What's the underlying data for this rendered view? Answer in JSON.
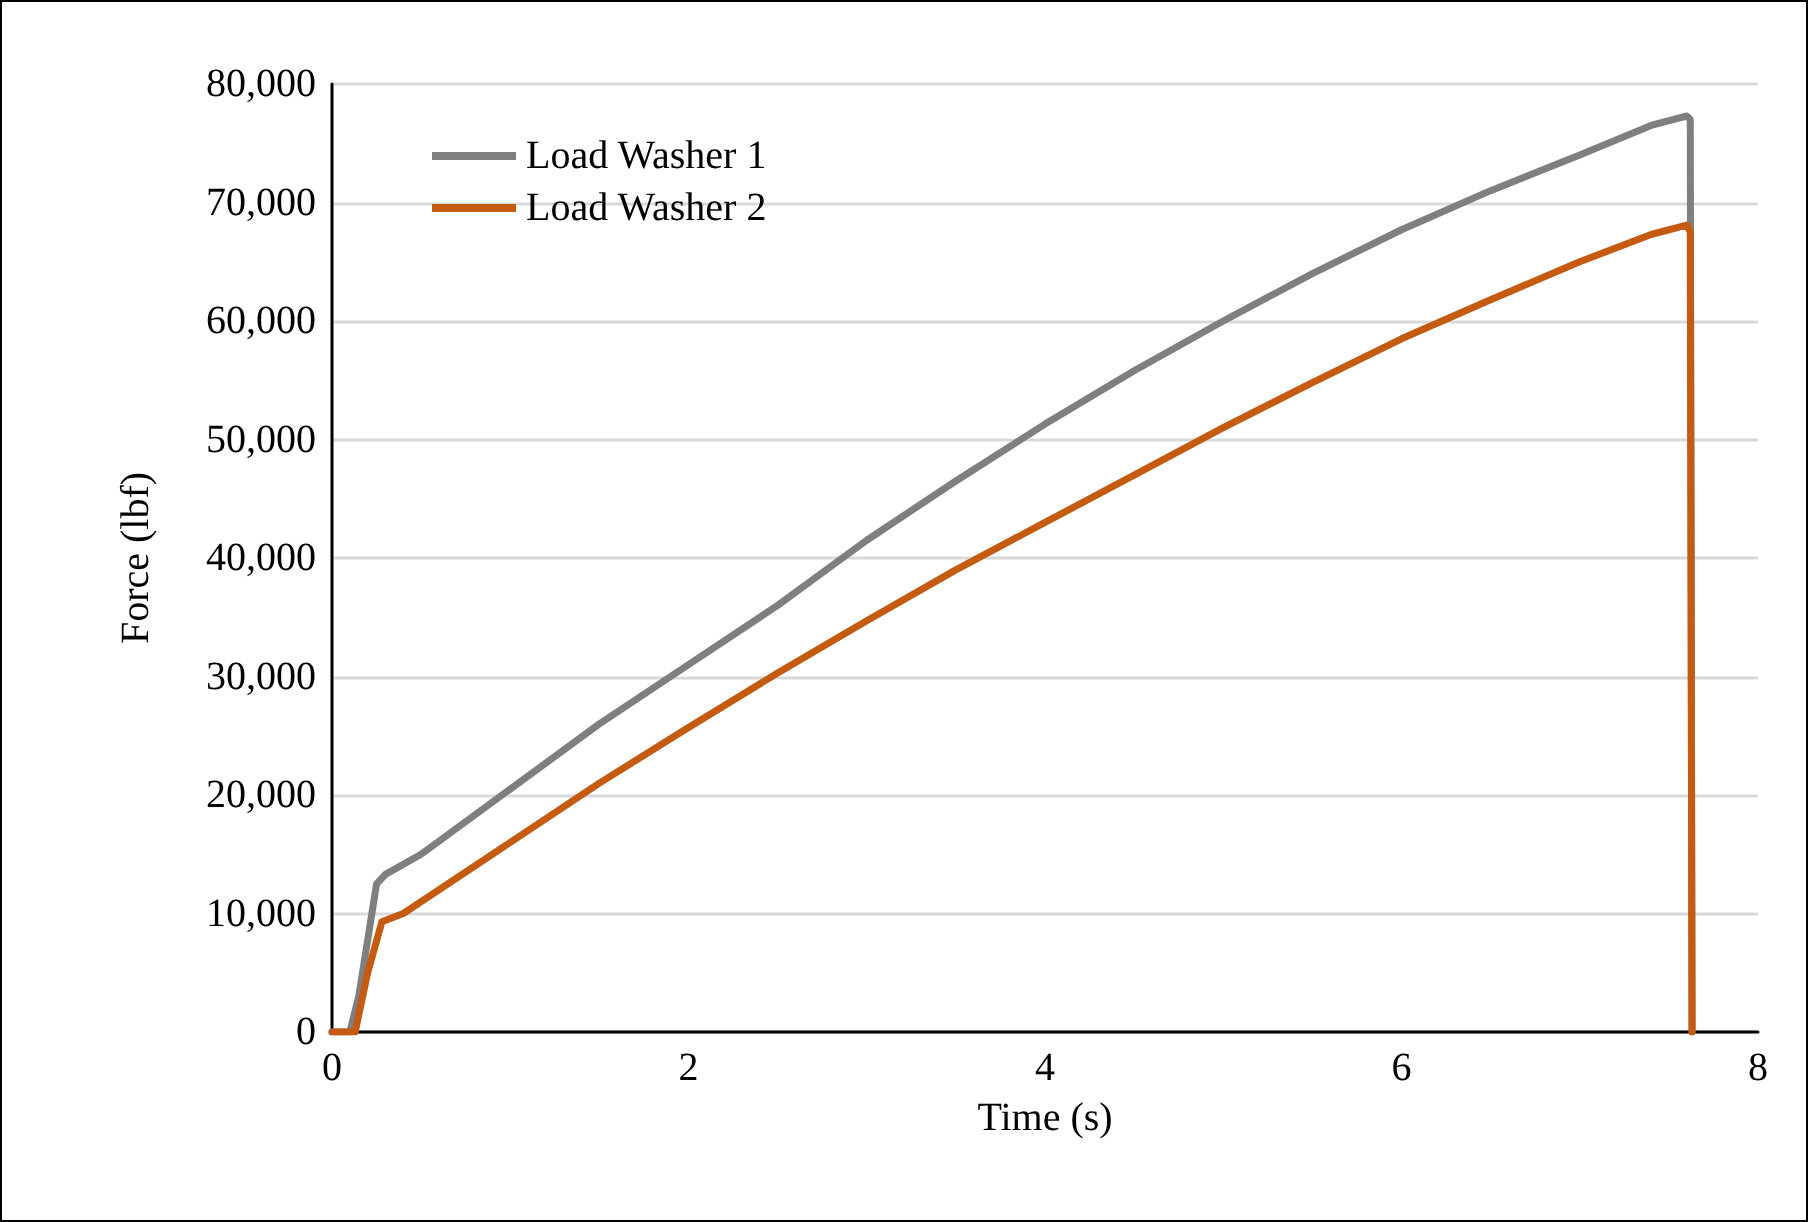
{
  "chart_data": {
    "type": "line",
    "xlabel": "Time (s)",
    "ylabel": "Force (lbf)",
    "xlim": [
      0,
      8
    ],
    "xticks": [
      0,
      2,
      4,
      6,
      8
    ],
    "ylim": [
      0,
      80000
    ],
    "yticks": [
      {
        "value": 0,
        "label": "0"
      },
      {
        "value": 10000,
        "label": "10,000"
      },
      {
        "value": 20000,
        "label": "20,000"
      },
      {
        "value": 30000,
        "label": "30,000"
      },
      {
        "value": 40000,
        "label": "40,000"
      },
      {
        "value": 50000,
        "label": "50,000"
      },
      {
        "value": 60000,
        "label": "60,000"
      },
      {
        "value": 70000,
        "label": "70,000"
      },
      {
        "value": 80000,
        "label": "80,000"
      }
    ],
    "grid": "y",
    "legend": "top left",
    "marker": "none",
    "line_style": "solid",
    "series": [
      {
        "name": "Load Washer 1",
        "color": "#7f7f7f",
        "x": [
          0,
          0.1,
          0.15,
          0.25,
          0.3,
          0.5,
          1,
          1.5,
          2,
          2.5,
          3,
          3.5,
          4,
          4.5,
          5,
          5.5,
          6,
          6.5,
          7,
          7.4,
          7.6,
          7.62,
          7.63
        ],
        "values": [
          0,
          0,
          3000,
          12500,
          13300,
          15000,
          20500,
          26000,
          31000,
          36000,
          41500,
          46500,
          51300,
          55800,
          60000,
          64000,
          67700,
          71000,
          74000,
          76500,
          77300,
          77000,
          0
        ]
      },
      {
        "name": "Load Washer 2",
        "color": "#c55a11",
        "x": [
          0,
          0.13,
          0.2,
          0.28,
          0.4,
          1,
          1.5,
          2,
          2.5,
          3,
          3.5,
          4,
          4.5,
          5,
          5.5,
          6,
          6.5,
          7,
          7.4,
          7.6,
          7.62,
          7.63
        ],
        "values": [
          0,
          0,
          5000,
          9300,
          10000,
          16000,
          21000,
          25700,
          30300,
          34700,
          39000,
          43000,
          47000,
          51000,
          54800,
          58500,
          61800,
          65000,
          67300,
          68100,
          67500,
          0
        ]
      }
    ]
  }
}
